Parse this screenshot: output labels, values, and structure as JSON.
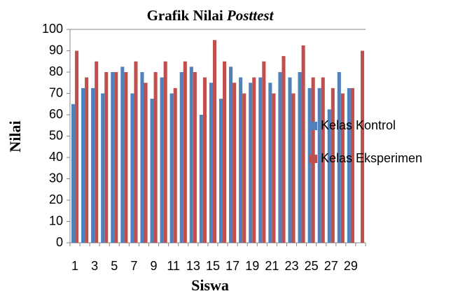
{
  "chart_data": {
    "type": "bar",
    "title": "Grafik Nilai Posttest",
    "x_label": "Siswa",
    "y_label": "Nilai",
    "categories": [
      "1",
      null,
      "3",
      null,
      "5",
      null,
      "7",
      null,
      "9",
      null,
      "11",
      null,
      "13",
      null,
      "15",
      null,
      "17",
      null,
      "19",
      null,
      "21",
      null,
      "23",
      null,
      "25",
      null,
      "27",
      null,
      "29",
      null
    ],
    "series": [
      {
        "name": "Kelas Kontrol",
        "color": "#4f81bd",
        "values": [
          65,
          72.5,
          72.5,
          70,
          80,
          82.5,
          70,
          80,
          67.5,
          77.5,
          70,
          80,
          82.5,
          60,
          75,
          67.5,
          82.5,
          77.5,
          75,
          77.5,
          75,
          80,
          77.5,
          80,
          72.5,
          72.5,
          62.5,
          80,
          72.5,
          null
        ]
      },
      {
        "name": "Kelas Eksperimen",
        "color": "#c0504d",
        "values": [
          90,
          77.5,
          85,
          80,
          80,
          80,
          85,
          75,
          80,
          85,
          72.5,
          85,
          80,
          77.5,
          95,
          85,
          75,
          70,
          77.5,
          85,
          70,
          87.5,
          70,
          92.5,
          77.5,
          77.5,
          72.5,
          70,
          72.5,
          90
        ]
      }
    ],
    "ylim": [
      0,
      100
    ],
    "yticks": [
      0,
      10,
      20,
      30,
      40,
      50,
      60,
      70,
      80,
      90,
      100
    ],
    "grid": false,
    "legend": "right"
  }
}
